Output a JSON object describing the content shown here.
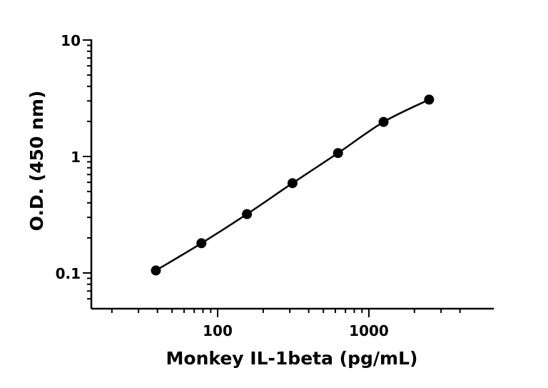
{
  "chart_data": {
    "type": "scatter",
    "title": "",
    "xlabel": "Monkey IL-1beta (pg/mL)",
    "ylabel": "O.D. (450 nm)",
    "x_scale": "log",
    "y_scale": "log",
    "xlim": [
      15,
      5000
    ],
    "ylim": [
      0.05,
      10
    ],
    "x_tick_labels": [
      "100",
      "1000"
    ],
    "y_tick_labels": [
      "0.1",
      "1",
      "10"
    ],
    "grid": false,
    "legend": "none",
    "series": [
      {
        "x": [
          39.06,
          78.13,
          156.25,
          312.5,
          625,
          1250,
          2500
        ],
        "y": [
          0.105,
          0.18,
          0.32,
          0.59,
          1.07,
          1.98,
          3.08
        ],
        "marker": "circle",
        "fit_line": true,
        "color": "#000000"
      }
    ]
  }
}
